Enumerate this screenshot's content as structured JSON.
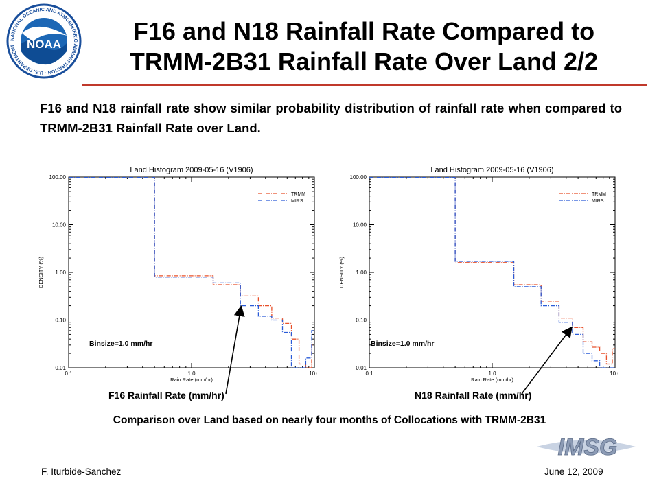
{
  "slide": {
    "title_line1": "F16 and N18 Rainfall Rate Compared to",
    "title_line2": "TRMM-2B31  Rainfall Rate Over Land 2/2",
    "description": "F16 and N18 rainfall rate show similar probability distribution of rainfall rate when compared to TRMM-2B31  Rainfall Rate over Land.",
    "left_caption": "F16 Rainfall Rate (mm/hr)",
    "right_caption": "N18 Rainfall Rate (mm/hr)",
    "bottom_text": "Comparison over Land based on nearly four months of Collocations with TRMM-2B31",
    "author": "F. Iturbide-Sanchez",
    "date": "June 12, 2009",
    "logo_text": "NOAA",
    "logo_ring_text": "NATIONAL OCEANIC AND ATMOSPHERIC ADMINISTRATION · U.S. DEPARTMENT OF COMMERCE",
    "imsg_logo_text": "IMSG",
    "colors": {
      "accent_line": "#c0392b",
      "trmm": "#e8502a",
      "mirs": "#2a5bd7",
      "noaa_blue": "#1a4f9c"
    }
  },
  "chart_data": [
    {
      "type": "line",
      "title": "Land Histogram 2009-05-16 (V1906)",
      "xlabel": "Rain Rate (mm/hr)",
      "ylabel": "DENSITY (%)",
      "x_scale": "log",
      "y_scale": "log",
      "xlim": [
        0.1,
        10.0
      ],
      "ylim": [
        0.01,
        100.0
      ],
      "xticks": [
        "0.1",
        "1.0",
        "10.0"
      ],
      "yticks": [
        "100.00",
        "10.00",
        "1.00",
        "0.10",
        "0.01"
      ],
      "legend_position": "top-right",
      "annotation": "Binsize=1.0 mm/hr",
      "series": [
        {
          "name": "TRMM",
          "color": "#e8502a",
          "x": [
            0.1,
            0.5,
            0.5,
            1.5,
            1.5,
            2.5,
            2.5,
            3.5,
            3.5,
            4.5,
            4.5,
            5.5,
            5.5,
            6.5,
            6.5,
            7.5,
            7.5,
            8.5,
            8.5,
            9.5,
            9.5,
            10.0
          ],
          "y": [
            98,
            98,
            0.85,
            0.85,
            0.55,
            0.55,
            0.32,
            0.32,
            0.2,
            0.2,
            0.11,
            0.11,
            0.085,
            0.085,
            0.04,
            0.04,
            0.012,
            0.012,
            0.01,
            0.01,
            0.03,
            0.03
          ]
        },
        {
          "name": "MIRS",
          "color": "#2a5bd7",
          "x": [
            0.1,
            0.5,
            0.5,
            1.5,
            1.5,
            2.5,
            2.5,
            3.5,
            3.5,
            4.5,
            4.5,
            5.5,
            5.5,
            6.5,
            6.5,
            7.5,
            7.5,
            8.5,
            8.5,
            9.5,
            9.5,
            10.0
          ],
          "y": [
            98,
            98,
            0.8,
            0.8,
            0.6,
            0.6,
            0.2,
            0.2,
            0.12,
            0.12,
            0.1,
            0.1,
            0.055,
            0.055,
            0.01,
            0.01,
            0.01,
            0.01,
            0.016,
            0.016,
            0.06,
            0.06
          ]
        }
      ]
    },
    {
      "type": "line",
      "title": "Land Histogram 2009-05-16 (V1906)",
      "xlabel": "Rain Rate (mm/hr)",
      "ylabel": "DENSITY (%)",
      "x_scale": "log",
      "y_scale": "log",
      "xlim": [
        0.1,
        10.0
      ],
      "ylim": [
        0.01,
        100.0
      ],
      "xticks": [
        "0.1",
        "1.0",
        "10.0"
      ],
      "yticks": [
        "100.00",
        "10.00",
        "1.00",
        "0.10",
        "0.01"
      ],
      "legend_position": "top-right",
      "annotation": "Binsize=1.0 mm/hr",
      "series": [
        {
          "name": "TRMM",
          "color": "#e8502a",
          "x": [
            0.1,
            0.5,
            0.5,
            1.5,
            1.5,
            2.5,
            2.5,
            3.5,
            3.5,
            4.5,
            4.5,
            5.5,
            5.5,
            6.5,
            6.5,
            7.5,
            7.5,
            8.5,
            8.5,
            9.5,
            9.5,
            10.0
          ],
          "y": [
            98,
            98,
            1.6,
            1.6,
            0.55,
            0.55,
            0.25,
            0.25,
            0.11,
            0.11,
            0.07,
            0.07,
            0.035,
            0.035,
            0.027,
            0.027,
            0.02,
            0.02,
            0.012,
            0.012,
            0.025,
            0.025
          ]
        },
        {
          "name": "MIRS",
          "color": "#2a5bd7",
          "x": [
            0.1,
            0.5,
            0.5,
            1.5,
            1.5,
            2.5,
            2.5,
            3.5,
            3.5,
            4.5,
            4.5,
            5.5,
            5.5,
            6.5,
            6.5,
            7.5,
            7.5,
            8.5,
            8.5,
            9.5,
            9.5,
            10.0
          ],
          "y": [
            98,
            98,
            1.7,
            1.7,
            0.5,
            0.5,
            0.2,
            0.2,
            0.09,
            0.09,
            0.05,
            0.05,
            0.02,
            0.02,
            0.014,
            0.014,
            0.01,
            0.01,
            0.01,
            0.01,
            0.01,
            0.01
          ]
        }
      ]
    }
  ]
}
